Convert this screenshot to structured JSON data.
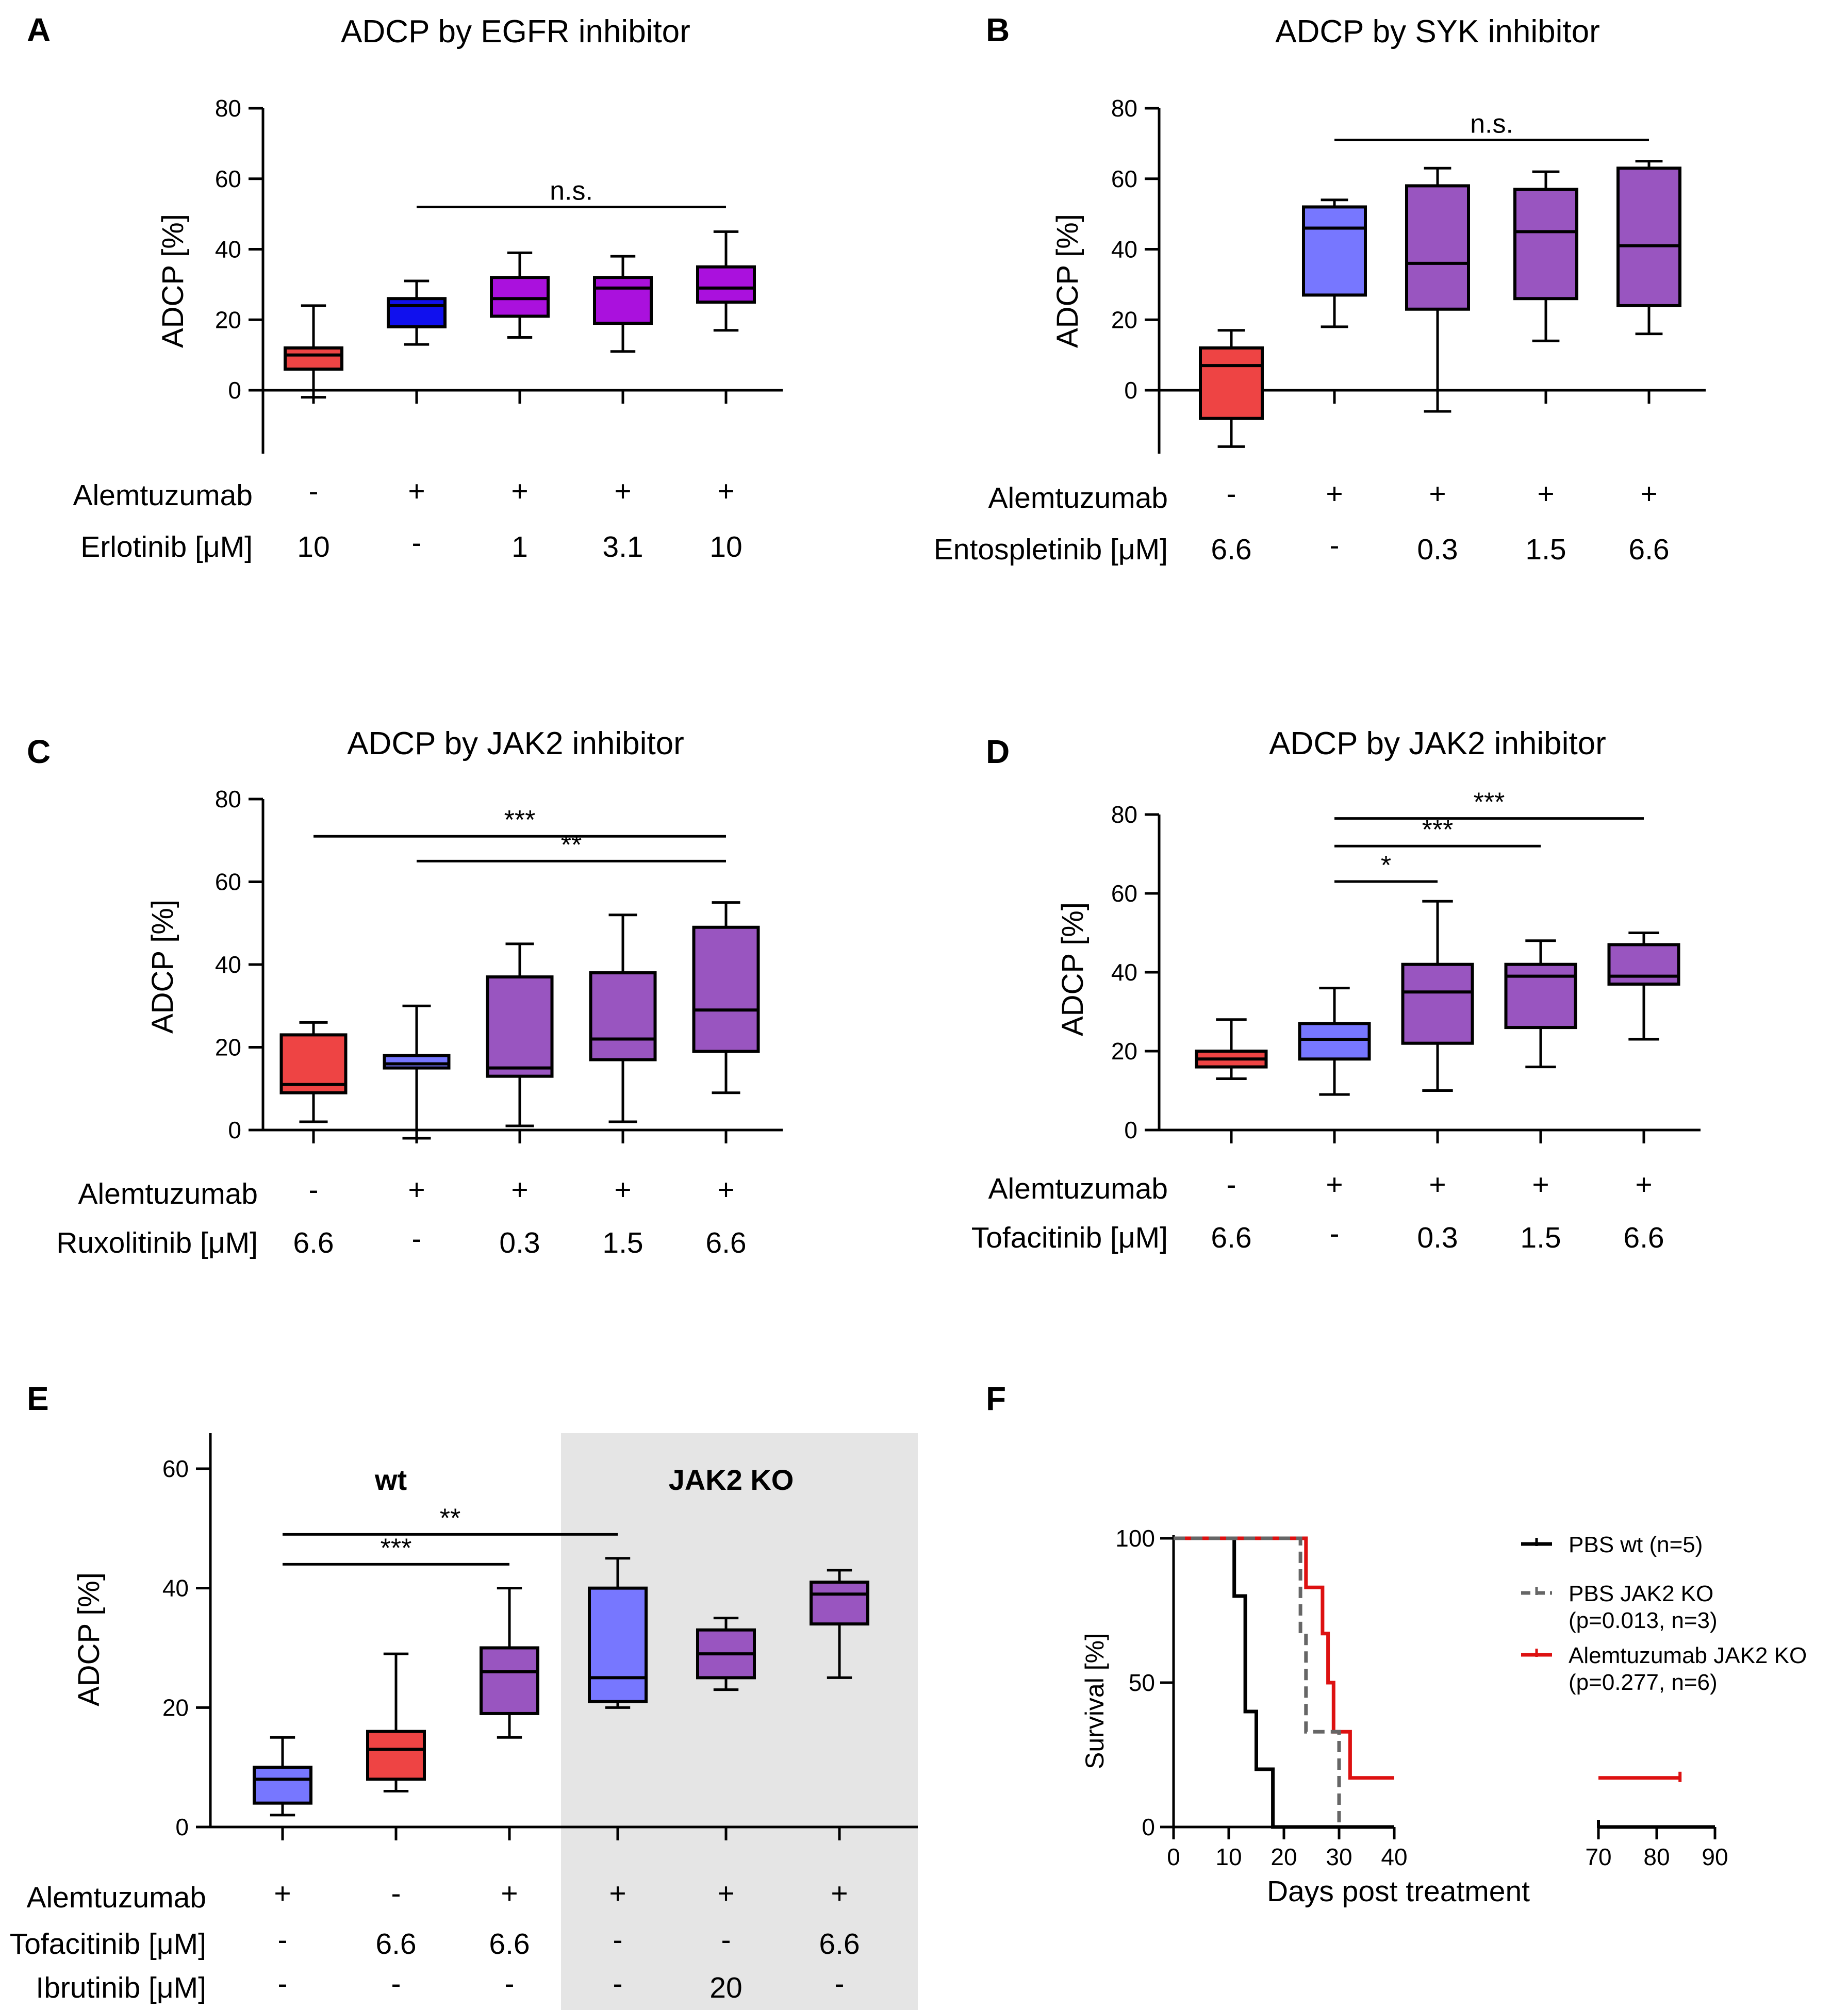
{
  "colors": {
    "red": "#ee4444",
    "blue_dark": "#1010ee",
    "purple_bright": "#aa11dd",
    "blue_light": "#7777ff",
    "purple": "#9955c0",
    "gray_bg": "#e5e5e5",
    "km_red": "#dd1111",
    "km_gray": "#666666"
  },
  "chart_data": [
    {
      "id": "A",
      "panel_label": "A",
      "type": "box",
      "title": "ADCP by EGFR inhibitor",
      "ylabel": "ADCP [%]",
      "ylim": [
        -17,
        80
      ],
      "yticks": [
        "0",
        "20",
        "40",
        "60",
        "80"
      ],
      "row_labels": [
        "Alemtuzumab",
        "Erlotinib [μM]"
      ],
      "groups": [
        {
          "rows": [
            "-",
            "10"
          ],
          "color": "red",
          "whisker_low": -2,
          "q1": 6,
          "median": 10,
          "q3": 12,
          "whisker_high": 24
        },
        {
          "rows": [
            "+",
            "-"
          ],
          "color": "blue_dark",
          "whisker_low": 13,
          "q1": 18,
          "median": 24,
          "q3": 26,
          "whisker_high": 31
        },
        {
          "rows": [
            "+",
            "1"
          ],
          "color": "purple_bright",
          "whisker_low": 15,
          "q1": 21,
          "median": 26,
          "q3": 32,
          "whisker_high": 39
        },
        {
          "rows": [
            "+",
            "3.1"
          ],
          "color": "purple_bright",
          "whisker_low": 11,
          "q1": 19,
          "median": 29,
          "q3": 32,
          "whisker_high": 38
        },
        {
          "rows": [
            "+",
            "10"
          ],
          "color": "purple_bright",
          "whisker_low": 17,
          "q1": 25,
          "median": 29,
          "q3": 35,
          "whisker_high": 45
        }
      ],
      "significance": [
        {
          "from": 1,
          "to": 4,
          "y": 52,
          "label": "n.s."
        }
      ]
    },
    {
      "id": "B",
      "panel_label": "B",
      "type": "box",
      "title": "ADCP by SYK inhibitor",
      "ylabel": "ADCP [%]",
      "ylim": [
        -17,
        80
      ],
      "yticks": [
        "0",
        "20",
        "40",
        "60",
        "80"
      ],
      "row_labels": [
        "Alemtuzumab",
        "Entospletinib [μM]"
      ],
      "groups": [
        {
          "rows": [
            "-",
            "6.6"
          ],
          "color": "red",
          "whisker_low": -16,
          "q1": -8,
          "median": 7,
          "q3": 12,
          "whisker_high": 17
        },
        {
          "rows": [
            "+",
            "-"
          ],
          "color": "blue_light",
          "whisker_low": 18,
          "q1": 27,
          "median": 46,
          "q3": 52,
          "whisker_high": 54
        },
        {
          "rows": [
            "+",
            "0.3"
          ],
          "color": "purple",
          "whisker_low": -6,
          "q1": 23,
          "median": 36,
          "q3": 58,
          "whisker_high": 63
        },
        {
          "rows": [
            "+",
            "1.5"
          ],
          "color": "purple",
          "whisker_low": 14,
          "q1": 26,
          "median": 45,
          "q3": 57,
          "whisker_high": 62
        },
        {
          "rows": [
            "+",
            "6.6"
          ],
          "color": "purple",
          "whisker_low": 16,
          "q1": 24,
          "median": 41,
          "q3": 63,
          "whisker_high": 65
        }
      ],
      "significance": [
        {
          "from": 1,
          "to": 4,
          "y": 71,
          "label": "n.s."
        }
      ]
    },
    {
      "id": "C",
      "panel_label": "C",
      "type": "box",
      "title": "ADCP by JAK2 inhibitor",
      "ylabel": "ADCP [%]",
      "ylim": [
        0,
        80
      ],
      "yticks": [
        "0",
        "20",
        "40",
        "60",
        "80"
      ],
      "row_labels": [
        "Alemtuzumab",
        "Ruxolitinib [μM]"
      ],
      "groups": [
        {
          "rows": [
            "-",
            "6.6"
          ],
          "color": "red",
          "whisker_low": 2,
          "q1": 9,
          "median": 11,
          "q3": 23,
          "whisker_high": 26
        },
        {
          "rows": [
            "+",
            "-"
          ],
          "color": "blue_light",
          "whisker_low": -2,
          "q1": 15,
          "median": 16,
          "q3": 18,
          "whisker_high": 30
        },
        {
          "rows": [
            "+",
            "0.3"
          ],
          "color": "purple",
          "whisker_low": 1,
          "q1": 13,
          "median": 15,
          "q3": 37,
          "whisker_high": 45
        },
        {
          "rows": [
            "+",
            "1.5"
          ],
          "color": "purple",
          "whisker_low": 2,
          "q1": 17,
          "median": 22,
          "q3": 38,
          "whisker_high": 52
        },
        {
          "rows": [
            "+",
            "6.6"
          ],
          "color": "purple",
          "whisker_low": 9,
          "q1": 19,
          "median": 29,
          "q3": 49,
          "whisker_high": 55
        }
      ],
      "significance": [
        {
          "from": 0,
          "to": 4,
          "y": 71,
          "label": "***"
        },
        {
          "from": 1,
          "to": 4,
          "y": 65,
          "label": "**"
        }
      ]
    },
    {
      "id": "D",
      "panel_label": "D",
      "type": "box",
      "title": "ADCP by JAK2 inhibitor",
      "ylabel": "ADCP [%]",
      "ylim": [
        0,
        80
      ],
      "yticks": [
        "0",
        "20",
        "40",
        "60",
        "80"
      ],
      "row_labels": [
        "Alemtuzumab",
        "Tofacitinib [μM]"
      ],
      "groups": [
        {
          "rows": [
            "-",
            "6.6"
          ],
          "color": "red",
          "whisker_low": 13,
          "q1": 16,
          "median": 18,
          "q3": 20,
          "whisker_high": 28
        },
        {
          "rows": [
            "+",
            "-"
          ],
          "color": "blue_light",
          "whisker_low": 9,
          "q1": 18,
          "median": 23,
          "q3": 27,
          "whisker_high": 36
        },
        {
          "rows": [
            "+",
            "0.3"
          ],
          "color": "purple",
          "whisker_low": 10,
          "q1": 22,
          "median": 35,
          "q3": 42,
          "whisker_high": 58
        },
        {
          "rows": [
            "+",
            "1.5"
          ],
          "color": "purple",
          "whisker_low": 16,
          "q1": 26,
          "median": 39,
          "q3": 42,
          "whisker_high": 48
        },
        {
          "rows": [
            "+",
            "6.6"
          ],
          "color": "purple",
          "whisker_low": 23,
          "q1": 37,
          "median": 39,
          "q3": 47,
          "whisker_high": 50
        }
      ],
      "significance": [
        {
          "from": 1,
          "to": 4,
          "y": 79,
          "label": "***"
        },
        {
          "from": 1,
          "to": 3,
          "y": 72,
          "label": "***"
        },
        {
          "from": 1,
          "to": 2,
          "y": 63,
          "label": "*"
        }
      ]
    },
    {
      "id": "E",
      "panel_label": "E",
      "type": "box",
      "title": "",
      "ylabel": "ADCP [%]",
      "ylim": [
        0,
        65
      ],
      "yticks": [
        "0",
        "20",
        "40",
        "60"
      ],
      "row_labels": [
        "Alemtuzumab",
        "Tofacitinib [μM]",
        "Ibrutinib [μM]"
      ],
      "group_labels": [
        "wt",
        "JAK2 KO"
      ],
      "groups": [
        {
          "rows": [
            "+",
            "-",
            "-"
          ],
          "color": "blue_light",
          "whisker_low": 2,
          "q1": 4,
          "median": 8,
          "q3": 10,
          "whisker_high": 15
        },
        {
          "rows": [
            "-",
            "6.6",
            "-"
          ],
          "color": "red",
          "whisker_low": 6,
          "q1": 8,
          "median": 13,
          "q3": 16,
          "whisker_high": 29
        },
        {
          "rows": [
            "+",
            "6.6",
            "-"
          ],
          "color": "purple",
          "whisker_low": 15,
          "q1": 19,
          "median": 26,
          "q3": 30,
          "whisker_high": 40
        },
        {
          "rows": [
            "+",
            "-",
            "-"
          ],
          "color": "blue_light",
          "whisker_low": 20,
          "q1": 21,
          "median": 25,
          "q3": 40,
          "whisker_high": 45
        },
        {
          "rows": [
            "+",
            "-",
            "20"
          ],
          "color": "purple",
          "whisker_low": 23,
          "q1": 25,
          "median": 29,
          "q3": 33,
          "whisker_high": 35
        },
        {
          "rows": [
            "+",
            "6.6",
            "-"
          ],
          "color": "purple",
          "whisker_low": 25,
          "q1": 34,
          "median": 39,
          "q3": 41,
          "whisker_high": 43
        }
      ],
      "significance": [
        {
          "from": 0,
          "to": 3,
          "y": 49,
          "label": "**"
        },
        {
          "from": 0,
          "to": 2,
          "y": 44,
          "label": "***"
        }
      ]
    },
    {
      "id": "F",
      "panel_label": "F",
      "type": "line",
      "title": "",
      "xlabel": "Days post treatment",
      "ylabel": "Survival [%]",
      "ylim": [
        0,
        100
      ],
      "yticks": [
        "0",
        "50",
        "100"
      ],
      "xticks_left": [
        "0",
        "10",
        "20",
        "30",
        "40"
      ],
      "xticks_right": [
        "70",
        "80",
        "90"
      ],
      "series": [
        {
          "name": "PBS wt (n=5)",
          "color": "#000000",
          "dash": false,
          "steps": [
            [
              0,
              100
            ],
            [
              11,
              100
            ],
            [
              11,
              80
            ],
            [
              13,
              80
            ],
            [
              13,
              40
            ],
            [
              15,
              40
            ],
            [
              15,
              20
            ],
            [
              18,
              20
            ],
            [
              18,
              0
            ],
            [
              40,
              0
            ],
            [
              70,
              0
            ],
            [
              90,
              0
            ]
          ]
        },
        {
          "name": "PBS JAK2 KO",
          "name2": "(p=0.013, n=3)",
          "color": "km_gray",
          "dash": true,
          "steps": [
            [
              0,
              100
            ],
            [
              23,
              100
            ],
            [
              23,
              67
            ],
            [
              24,
              67
            ],
            [
              24,
              33
            ],
            [
              30,
              33
            ],
            [
              30,
              0
            ]
          ]
        },
        {
          "name": "Alemtuzumab JAK2 KO",
          "name2": "(p=0.277, n=6)",
          "color": "km_red",
          "dash": false,
          "steps": [
            [
              0,
              100
            ],
            [
              24,
              100
            ],
            [
              24,
              83
            ],
            [
              27,
              83
            ],
            [
              27,
              67
            ],
            [
              28,
              67
            ],
            [
              28,
              50
            ],
            [
              29,
              50
            ],
            [
              29,
              33
            ],
            [
              32,
              33
            ],
            [
              32,
              17
            ],
            [
              40,
              17
            ],
            [
              70,
              17
            ],
            [
              84,
              17
            ]
          ]
        }
      ]
    }
  ]
}
